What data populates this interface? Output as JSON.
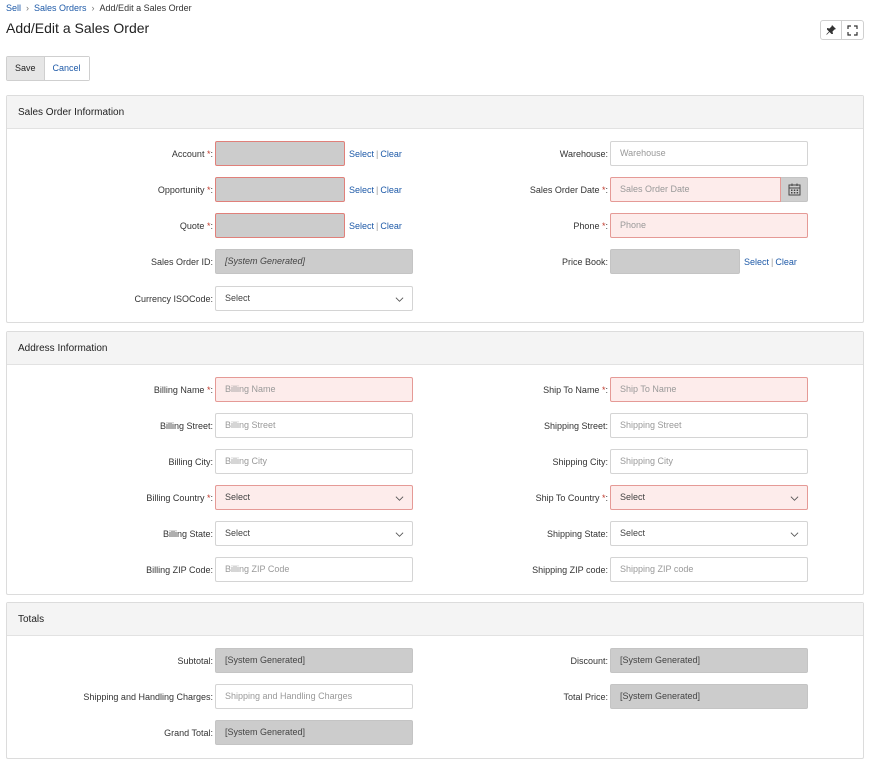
{
  "breadcrumb": {
    "items": [
      "Sell",
      "Sales Orders",
      "Add/Edit a Sales Order"
    ]
  },
  "page_title": "Add/Edit a Sales Order",
  "top_icons": [
    "pin-icon",
    "expand-icon"
  ],
  "actions": {
    "save": "Save",
    "cancel": "Cancel"
  },
  "link_select": "Select",
  "link_clear": "Clear",
  "sales_order_info": {
    "header": "Sales Order Information",
    "account": {
      "label": "Account",
      "value": ""
    },
    "opportunity": {
      "label": "Opportunity",
      "value": ""
    },
    "quote": {
      "label": "Quote",
      "value": ""
    },
    "sales_order_id": {
      "label": "Sales Order ID:",
      "value": "[System Generated]"
    },
    "currency": {
      "label": "Currency ISOCode:",
      "value": "Select"
    },
    "warehouse": {
      "label": "Warehouse:",
      "placeholder": "Warehouse"
    },
    "sales_order_date": {
      "label": "Sales Order Date",
      "placeholder": "Sales Order Date"
    },
    "phone": {
      "label": "Phone",
      "placeholder": "Phone"
    },
    "price_book": {
      "label": "Price Book:",
      "value": ""
    }
  },
  "address_info": {
    "header": "Address Information",
    "billing_name": {
      "label": "Billing Name",
      "placeholder": "Billing Name"
    },
    "billing_street": {
      "label": "Billing Street:",
      "placeholder": "Billing Street"
    },
    "billing_city": {
      "label": "Billing City:",
      "placeholder": "Billing City"
    },
    "billing_country": {
      "label": "Billing Country",
      "value": "Select"
    },
    "billing_state": {
      "label": "Billing State:",
      "value": "Select"
    },
    "billing_zip": {
      "label": "Billing ZIP Code:",
      "placeholder": "Billing ZIP Code"
    },
    "ship_to_name": {
      "label": "Ship To Name",
      "placeholder": "Ship To Name"
    },
    "shipping_street": {
      "label": "Shipping Street:",
      "placeholder": "Shipping Street"
    },
    "shipping_city": {
      "label": "Shipping City:",
      "placeholder": "Shipping City"
    },
    "ship_to_country": {
      "label": "Ship To Country",
      "value": "Select"
    },
    "shipping_state": {
      "label": "Shipping State:",
      "value": "Select"
    },
    "shipping_zip": {
      "label": "Shipping ZIP code:",
      "placeholder": "Shipping ZIP code"
    }
  },
  "totals": {
    "header": "Totals",
    "subtotal": {
      "label": "Subtotal:",
      "value": "[System Generated]"
    },
    "shipping_handling": {
      "label": "Shipping and Handling Charges:",
      "placeholder": "Shipping and Handling Charges"
    },
    "grand_total": {
      "label": "Grand Total:",
      "value": "[System Generated]"
    },
    "discount": {
      "label": "Discount:",
      "value": "[System Generated]"
    },
    "total_price": {
      "label": "Total Price:",
      "value": "[System Generated]"
    }
  },
  "colors": {
    "link": "#1e5aa8",
    "required": "#c0392b",
    "required_field_bg": "#fdeceb",
    "readonly_field_bg": "#cccccc"
  }
}
